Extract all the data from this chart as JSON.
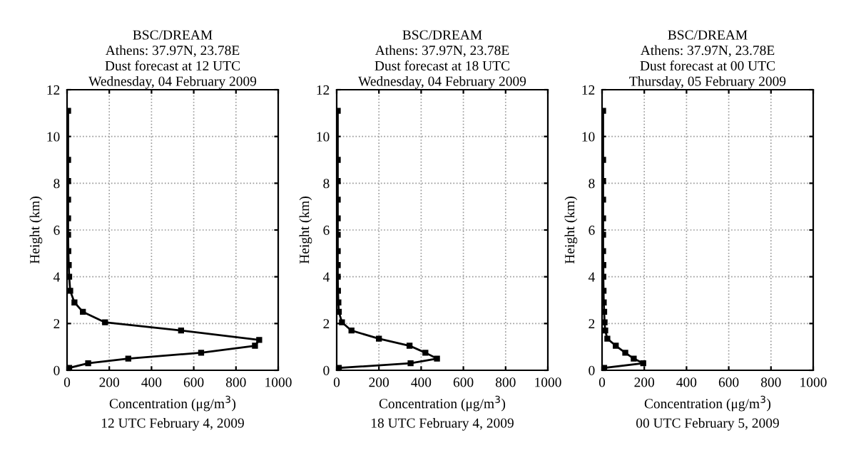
{
  "chart_data": [
    {
      "type": "line",
      "title": "BSC/DREAM\nAthens: 37.97N, 23.78E\nDust forecast at 12 UTC\nWednesday, 04 February 2009",
      "xlabel": "Concentration (μg/m$^{3}$)",
      "ylabel": "Height (km)",
      "annotations": [
        "12 UTC February 4, 2009"
      ],
      "xlim": [
        0,
        1000
      ],
      "xticks": [
        0,
        200,
        400,
        600,
        800,
        1000
      ],
      "ylim": [
        0,
        12
      ],
      "yticks": [
        0,
        2,
        4,
        6,
        8,
        10,
        12
      ],
      "grid": true,
      "marker": "square",
      "line_style": "solid",
      "series": [
        {
          "color": "#000000",
          "x": [
            10,
            100,
            290,
            635,
            890,
            910,
            540,
            180,
            75,
            35,
            15,
            10,
            8,
            6,
            5,
            5,
            5,
            5,
            5,
            5
          ],
          "values": [
            0.1,
            0.3,
            0.5,
            0.75,
            1.05,
            1.3,
            1.7,
            2.05,
            2.5,
            2.9,
            3.4,
            4.0,
            4.5,
            5.1,
            5.8,
            6.5,
            7.3,
            8.1,
            9.0,
            11.1
          ]
        }
      ]
    },
    {
      "type": "line",
      "title": "BSC/DREAM\nAthens: 37.97N, 23.78E\nDust forecast at 18 UTC\nWednesday, 04 February 2009",
      "xlabel": "Concentration (μg/m$^{3}$)",
      "ylabel": "Height (km)",
      "annotations": [
        "18 UTC February 4, 2009"
      ],
      "xlim": [
        0,
        1000
      ],
      "xticks": [
        0,
        200,
        400,
        600,
        800,
        1000
      ],
      "ylim": [
        0,
        12
      ],
      "yticks": [
        0,
        2,
        4,
        6,
        8,
        10,
        12
      ],
      "grid": true,
      "marker": "square",
      "line_style": "solid",
      "series": [
        {
          "color": "#000000",
          "x": [
            10,
            350,
            475,
            420,
            345,
            200,
            70,
            25,
            10,
            8,
            6,
            5,
            5,
            5,
            5,
            5,
            5,
            5,
            5,
            5
          ],
          "values": [
            0.1,
            0.3,
            0.5,
            0.75,
            1.05,
            1.35,
            1.7,
            2.05,
            2.5,
            2.9,
            3.4,
            4.0,
            4.5,
            5.1,
            5.8,
            6.5,
            7.3,
            8.1,
            9.0,
            11.1
          ]
        }
      ]
    },
    {
      "type": "line",
      "title": "BSC/DREAM\nAthens: 37.97N, 23.78E\nDust forecast at 00 UTC\nThursday, 05 February 2009",
      "xlabel": "Concentration (μg/m$^{3}$)",
      "ylabel": "Height (km)",
      "annotations": [
        "00 UTC February 5, 2009"
      ],
      "xlim": [
        0,
        1000
      ],
      "xticks": [
        0,
        200,
        400,
        600,
        800,
        1000
      ],
      "ylim": [
        0,
        12
      ],
      "yticks": [
        0,
        2,
        4,
        6,
        8,
        10,
        12
      ],
      "grid": true,
      "marker": "square",
      "line_style": "solid",
      "series": [
        {
          "color": "#000000",
          "x": [
            10,
            195,
            150,
            110,
            65,
            25,
            15,
            12,
            10,
            8,
            7,
            6,
            6,
            5,
            5,
            5,
            5,
            5,
            5,
            5
          ],
          "values": [
            0.1,
            0.3,
            0.5,
            0.75,
            1.05,
            1.35,
            1.7,
            2.05,
            2.5,
            2.9,
            3.4,
            4.0,
            4.5,
            5.1,
            5.8,
            6.5,
            7.3,
            8.1,
            9.0,
            11.1
          ]
        }
      ]
    }
  ]
}
